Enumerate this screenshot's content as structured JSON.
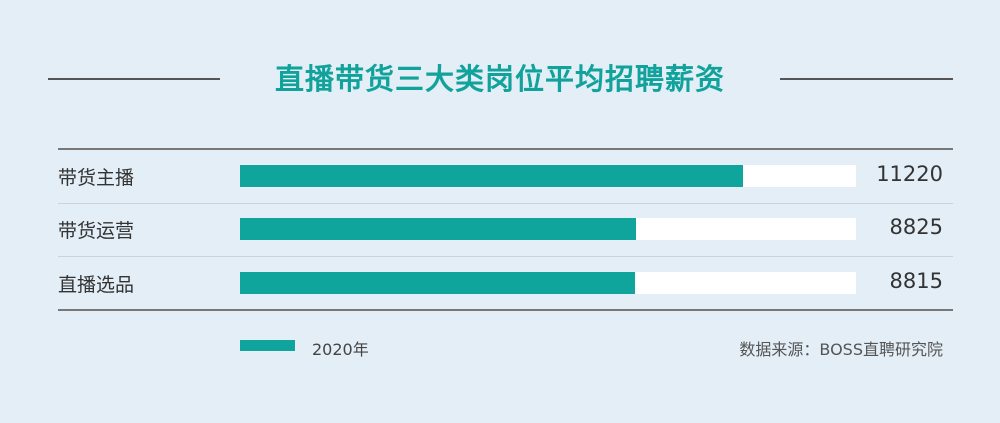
{
  "watermark": "BOSS直聘",
  "colors": {
    "bar": "#0fa59c",
    "track": "#ffffff",
    "title": "#11a39b",
    "background": "#e3eef7"
  },
  "chart_data": {
    "type": "bar",
    "orientation": "horizontal",
    "title": "直播带货三大类岗位平均招聘薪资",
    "categories": [
      "带货主播",
      "带货运营",
      "直播选品"
    ],
    "series": [
      {
        "name": "2020年",
        "values": [
          11220,
          8825,
          8815
        ]
      }
    ],
    "value_labels": [
      "11220",
      "8825",
      "8815"
    ],
    "xlim": [
      0,
      13740
    ],
    "legend": "bottom-left",
    "grid": false
  },
  "source": "数据来源：BOSS直聘研究院"
}
